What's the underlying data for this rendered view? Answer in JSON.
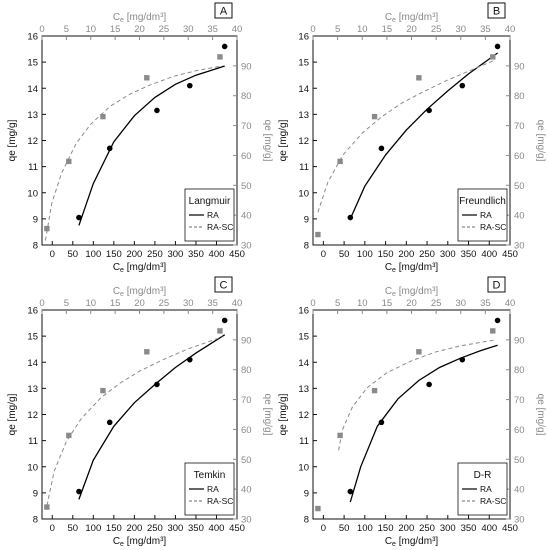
{
  "figure": {
    "background": "#ffffff",
    "colors": {
      "ra": "#000000",
      "ra_sc": "#8a8a8a",
      "axis": "#111111",
      "top_axis": "#8a8a8a"
    }
  },
  "chart_data": [
    {
      "type": "scatter",
      "panel_label": "A",
      "model": "Langmuir",
      "xlabel": "C_e [mg/dm³]",
      "ylabel": "qe [mg/g]",
      "x2label": "C_e [mg/dm³]",
      "y2label": "qe [mg/g]",
      "xlim": [
        -25,
        450
      ],
      "ylim": [
        8,
        16
      ],
      "x2lim": [
        0,
        40
      ],
      "y2lim": [
        30,
        100
      ],
      "xticks": [
        0,
        50,
        100,
        150,
        200,
        250,
        300,
        350,
        400,
        450
      ],
      "yticks": [
        8,
        9,
        10,
        11,
        12,
        13,
        14,
        15,
        16
      ],
      "x2ticks": [
        0,
        5,
        10,
        15,
        20,
        25,
        30,
        35,
        40
      ],
      "y2ticks": [
        30,
        40,
        50,
        60,
        70,
        80,
        90
      ],
      "series": [
        {
          "name": "RA",
          "axes": "primary",
          "marker": "circle",
          "points": [
            [
              65,
              9.05
            ],
            [
              140,
              11.7
            ],
            [
              255,
              13.15
            ],
            [
              335,
              14.1
            ],
            [
              420,
              15.6
            ]
          ],
          "fit": [
            [
              65,
              8.75
            ],
            [
              100,
              10.35
            ],
            [
              150,
              11.95
            ],
            [
              200,
              12.95
            ],
            [
              250,
              13.65
            ],
            [
              300,
              14.15
            ],
            [
              350,
              14.5
            ],
            [
              420,
              14.85
            ]
          ]
        },
        {
          "name": "RA-SC",
          "axes": "secondary",
          "marker": "square",
          "points": [
            [
              1.0,
              35.5
            ],
            [
              5.5,
              58.0
            ],
            [
              12.5,
              73.0
            ],
            [
              21.5,
              86.0
            ],
            [
              36.5,
              93.0
            ]
          ],
          "fit": [
            [
              0.7,
              31.5
            ],
            [
              2,
              44
            ],
            [
              4,
              54
            ],
            [
              7,
              64
            ],
            [
              10,
              70.5
            ],
            [
              14,
              76.5
            ],
            [
              18,
              80.5
            ],
            [
              22,
              83.5
            ],
            [
              27,
              86.5
            ],
            [
              32,
              88.5
            ],
            [
              37,
              90
            ]
          ]
        }
      ]
    },
    {
      "type": "scatter",
      "panel_label": "B",
      "model": "Freundlich",
      "xlabel": "C_e [mg/dm³]",
      "ylabel": "qe [mg/g]",
      "x2label": "C_e [mg/dm³]",
      "y2label": "qe [mg/g]",
      "xlim": [
        -25,
        450
      ],
      "ylim": [
        8,
        16
      ],
      "x2lim": [
        0,
        40
      ],
      "y2lim": [
        30,
        100
      ],
      "xticks": [
        0,
        50,
        100,
        150,
        200,
        250,
        300,
        350,
        400,
        450
      ],
      "yticks": [
        8,
        9,
        10,
        11,
        12,
        13,
        14,
        15,
        16
      ],
      "x2ticks": [
        0,
        5,
        10,
        15,
        20,
        25,
        30,
        35,
        40
      ],
      "y2ticks": [
        30,
        40,
        50,
        60,
        70,
        80,
        90
      ],
      "series": [
        {
          "name": "RA",
          "axes": "primary",
          "marker": "circle",
          "points": [
            [
              65,
              9.05
            ],
            [
              140,
              11.7
            ],
            [
              255,
              13.15
            ],
            [
              335,
              14.1
            ],
            [
              420,
              15.6
            ]
          ],
          "fit": [
            [
              65,
              9.0
            ],
            [
              100,
              10.25
            ],
            [
              150,
              11.45
            ],
            [
              200,
              12.4
            ],
            [
              250,
              13.2
            ],
            [
              300,
              13.9
            ],
            [
              350,
              14.55
            ],
            [
              420,
              15.35
            ]
          ]
        },
        {
          "name": "RA-SC",
          "axes": "secondary",
          "marker": "square",
          "points": [
            [
              1.0,
              33.5
            ],
            [
              5.5,
              58.0
            ],
            [
              12.5,
              73.0
            ],
            [
              21.5,
              86.0
            ],
            [
              36.5,
              93.0
            ]
          ],
          "fit": [
            [
              1,
              41
            ],
            [
              3,
              51
            ],
            [
              6,
              60
            ],
            [
              10,
              67.5
            ],
            [
              14,
              73
            ],
            [
              18,
              77.5
            ],
            [
              22,
              81
            ],
            [
              27,
              85
            ],
            [
              32,
              88.5
            ],
            [
              37,
              92
            ]
          ]
        }
      ]
    },
    {
      "type": "scatter",
      "panel_label": "C",
      "model": "Temkin",
      "xlabel": "C_e [mg/dm³]",
      "ylabel": "qe [mg/g]",
      "x2label": "C_e [mg/dm³]",
      "y2label": "qe [mg/g]",
      "xlim": [
        -25,
        450
      ],
      "ylim": [
        8,
        16
      ],
      "x2lim": [
        0,
        40
      ],
      "y2lim": [
        30,
        100
      ],
      "xticks": [
        0,
        50,
        100,
        150,
        200,
        250,
        300,
        350,
        400,
        450
      ],
      "yticks": [
        8,
        9,
        10,
        11,
        12,
        13,
        14,
        15,
        16
      ],
      "x2ticks": [
        0,
        5,
        10,
        15,
        20,
        25,
        30,
        35,
        40
      ],
      "y2ticks": [
        30,
        40,
        50,
        60,
        70,
        80,
        90
      ],
      "series": [
        {
          "name": "RA",
          "axes": "primary",
          "marker": "circle",
          "points": [
            [
              65,
              9.05
            ],
            [
              140,
              11.7
            ],
            [
              255,
              13.15
            ],
            [
              335,
              14.1
            ],
            [
              420,
              15.6
            ]
          ],
          "fit": [
            [
              65,
              8.75
            ],
            [
              100,
              10.25
            ],
            [
              150,
              11.55
            ],
            [
              200,
              12.45
            ],
            [
              250,
              13.15
            ],
            [
              300,
              13.8
            ],
            [
              350,
              14.35
            ],
            [
              420,
              15.05
            ]
          ]
        },
        {
          "name": "RA-SC",
          "axes": "secondary",
          "marker": "square",
          "points": [
            [
              1.0,
              34.0
            ],
            [
              5.5,
              58.0
            ],
            [
              12.5,
              73.0
            ],
            [
              21.5,
              86.0
            ],
            [
              36.5,
              93.0
            ]
          ],
          "fit": [
            [
              1,
              34.5
            ],
            [
              2.5,
              46
            ],
            [
              5,
              56
            ],
            [
              8,
              63.5
            ],
            [
              12,
              70.5
            ],
            [
              16,
              75.5
            ],
            [
              20,
              79.5
            ],
            [
              25,
              83.5
            ],
            [
              30,
              87
            ],
            [
              37,
              91
            ]
          ]
        }
      ]
    },
    {
      "type": "scatter",
      "panel_label": "D",
      "model": "D-R",
      "xlabel": "C_e [mg/dm³]",
      "ylabel": "qe [mg/g]",
      "x2label": "C_e [mg/dm³]",
      "y2label": "qe [mg/g]",
      "xlim": [
        -25,
        450
      ],
      "ylim": [
        8,
        16
      ],
      "x2lim": [
        0,
        40
      ],
      "y2lim": [
        30,
        100
      ],
      "xticks": [
        0,
        50,
        100,
        150,
        200,
        250,
        300,
        350,
        400,
        450
      ],
      "yticks": [
        8,
        9,
        10,
        11,
        12,
        13,
        14,
        15,
        16
      ],
      "x2ticks": [
        0,
        5,
        10,
        15,
        20,
        25,
        30,
        35,
        40
      ],
      "y2ticks": [
        30,
        40,
        50,
        60,
        70,
        80,
        90
      ],
      "series": [
        {
          "name": "RA",
          "axes": "primary",
          "marker": "circle",
          "points": [
            [
              65,
              9.05
            ],
            [
              140,
              11.7
            ],
            [
              255,
              13.15
            ],
            [
              335,
              14.1
            ],
            [
              420,
              15.6
            ]
          ],
          "fit": [
            [
              65,
              8.65
            ],
            [
              90,
              10.0
            ],
            [
              130,
              11.55
            ],
            [
              180,
              12.6
            ],
            [
              230,
              13.3
            ],
            [
              280,
              13.8
            ],
            [
              330,
              14.15
            ],
            [
              380,
              14.45
            ],
            [
              420,
              14.65
            ]
          ]
        },
        {
          "name": "RA-SC",
          "axes": "secondary",
          "marker": "square",
          "points": [
            [
              1.0,
              33.5
            ],
            [
              5.5,
              58.0
            ],
            [
              12.5,
              73.0
            ],
            [
              21.5,
              86.0
            ],
            [
              36.5,
              93.0
            ]
          ],
          "fit": [
            [
              5.2,
              53
            ],
            [
              6,
              60
            ],
            [
              8,
              67.5
            ],
            [
              11,
              74
            ],
            [
              15,
              79
            ],
            [
              20,
              83
            ],
            [
              25,
              86
            ],
            [
              30,
              88
            ],
            [
              37,
              90
            ]
          ]
        }
      ]
    }
  ]
}
